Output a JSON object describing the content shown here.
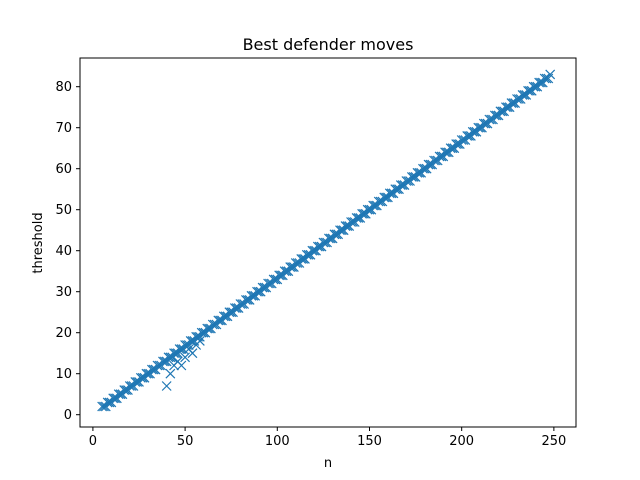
{
  "chart_data": {
    "type": "scatter",
    "title": "Best defender moves",
    "xlabel": "n",
    "ylabel": "threshold",
    "xlim": [
      -7,
      262
    ],
    "ylim": [
      -3,
      87
    ],
    "xticks": [
      0,
      50,
      100,
      150,
      200,
      250
    ],
    "yticks": [
      0,
      10,
      20,
      30,
      40,
      50,
      60,
      70,
      80
    ],
    "grid": false,
    "marker": "x",
    "color": "#1f77b4",
    "series": [
      {
        "main_line": {
          "x_start": 5,
          "x_end": 248,
          "slope": 0.3333,
          "intercept": 0,
          "step": 1
        },
        "outliers": [
          {
            "x": 40,
            "y": 7
          },
          {
            "x": 42,
            "y": 10
          },
          {
            "x": 44,
            "y": 12
          },
          {
            "x": 46,
            "y": 13
          },
          {
            "x": 48,
            "y": 12
          },
          {
            "x": 50,
            "y": 14
          },
          {
            "x": 52,
            "y": 16
          },
          {
            "x": 54,
            "y": 15
          },
          {
            "x": 56,
            "y": 17
          },
          {
            "x": 58,
            "y": 18
          }
        ]
      }
    ]
  }
}
